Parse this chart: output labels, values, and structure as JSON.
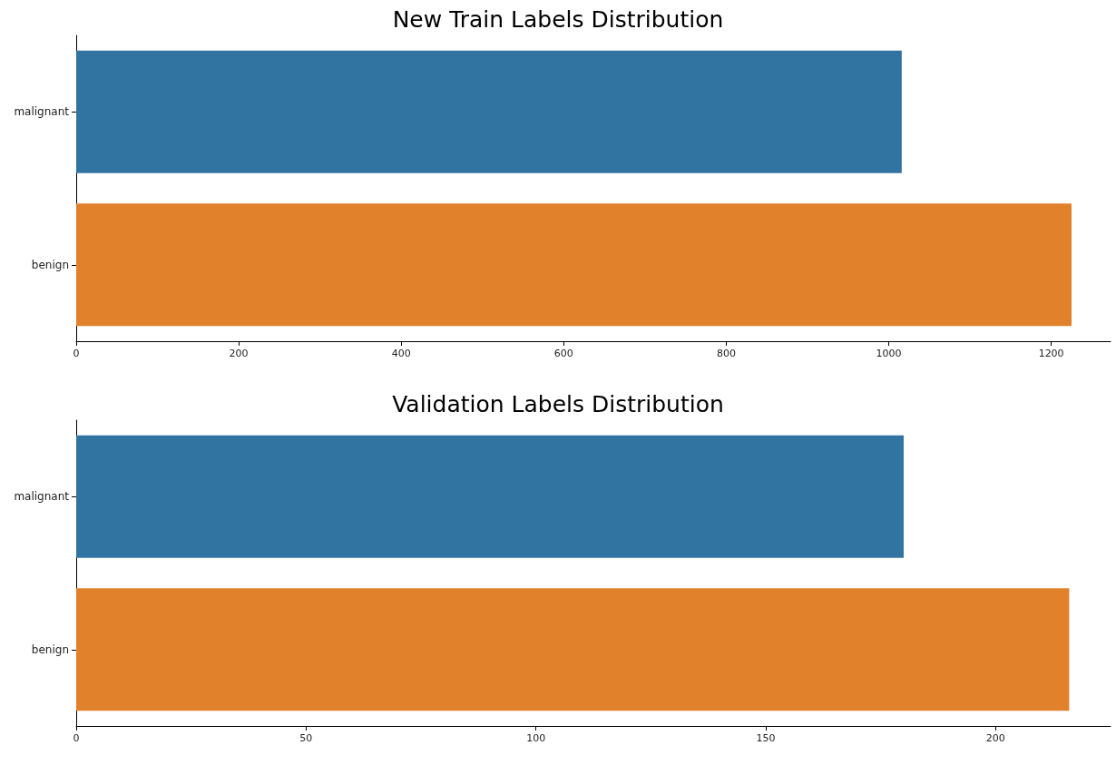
{
  "chart_data": [
    {
      "type": "bar",
      "title": "New Train Labels Distribution",
      "orientation": "horizontal",
      "categories": [
        "malignant",
        "benign"
      ],
      "values": [
        1016,
        1225
      ],
      "colors": [
        "#3274a1",
        "#e1812c"
      ],
      "xlim": [
        0,
        1273
      ],
      "xticks": [
        0,
        200,
        400,
        600,
        800,
        1000,
        1200
      ]
    },
    {
      "type": "bar",
      "title": "Validation Labels Distribution",
      "orientation": "horizontal",
      "categories": [
        "malignant",
        "benign"
      ],
      "values": [
        180,
        216
      ],
      "colors": [
        "#3274a1",
        "#e1812c"
      ],
      "xlim": [
        0,
        225
      ],
      "xticks": [
        0,
        50,
        100,
        150,
        200
      ]
    }
  ]
}
